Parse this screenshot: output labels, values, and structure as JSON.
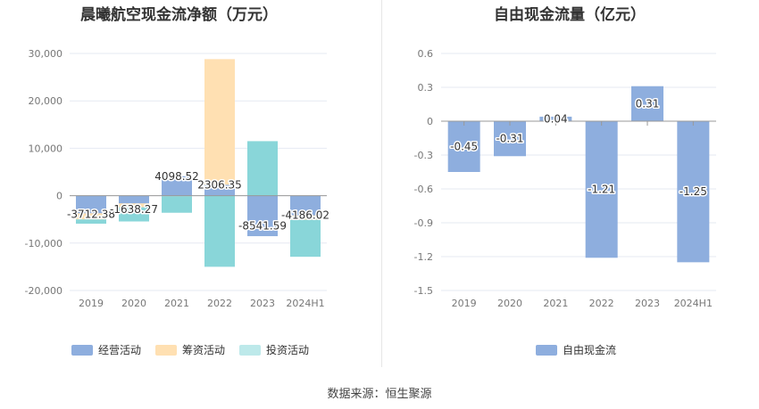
{
  "source_label": "数据来源：恒生聚源",
  "colors": {
    "operating": "#8eaede",
    "financing": "#ffe0b2",
    "investing": "#89d6d9",
    "fcf": "#8eaede",
    "grid": "#e6e9f2",
    "axis": "#999999"
  },
  "chart_data": [
    {
      "type": "bar",
      "stacked": true,
      "title": "晨曦航空现金流净额（万元）",
      "xlabel": "",
      "ylabel": "",
      "categories": [
        "2019",
        "2020",
        "2021",
        "2022",
        "2023",
        "2024H1"
      ],
      "ylim": [
        -20000,
        30000
      ],
      "yticks": [
        "30,000",
        "20,000",
        "10,000",
        "0",
        "-10,000",
        "-20,000"
      ],
      "ytick_values": [
        30000,
        20000,
        10000,
        0,
        -10000,
        -20000
      ],
      "grid": true,
      "legend_position": "bottom-left",
      "series": [
        {
          "name": "经营活动",
          "color_key": "operating",
          "values": [
            -3712.38,
            -1638.27,
            4098.52,
            2306.35,
            -8541.59,
            -4186.02
          ]
        },
        {
          "name": "筹资活动",
          "color_key": "financing",
          "values": [
            -1300,
            -800,
            -100,
            26500,
            0,
            -900
          ]
        },
        {
          "name": "投资活动",
          "color_key": "investing",
          "values": [
            -900,
            -3000,
            -3500,
            -15000,
            11500,
            -7800
          ]
        }
      ],
      "data_labels": [
        "-3712.38",
        "-1638.27",
        "4098.52",
        "2306.35",
        "-8541.59",
        "-4186.02"
      ]
    },
    {
      "type": "bar",
      "title": "自由现金流量（亿元）",
      "xlabel": "",
      "ylabel": "",
      "categories": [
        "2019",
        "2020",
        "2021",
        "2022",
        "2023",
        "2024H1"
      ],
      "ylim": [
        -1.5,
        0.6
      ],
      "yticks": [
        "0.6",
        "0.3",
        "0",
        "-0.3",
        "-0.6",
        "-0.9",
        "-1.2",
        "-1.5"
      ],
      "ytick_values": [
        0.6,
        0.3,
        0,
        -0.3,
        -0.6,
        -0.9,
        -1.2,
        -1.5
      ],
      "grid": true,
      "legend_position": "bottom-center",
      "series": [
        {
          "name": "自由现金流",
          "color_key": "fcf",
          "values": [
            -0.45,
            -0.31,
            0.04,
            -1.21,
            0.31,
            -1.25
          ]
        }
      ],
      "data_labels": [
        "-0.45",
        "-0.31",
        "0.04",
        "-1.21",
        "0.31",
        "-1.25"
      ]
    }
  ]
}
